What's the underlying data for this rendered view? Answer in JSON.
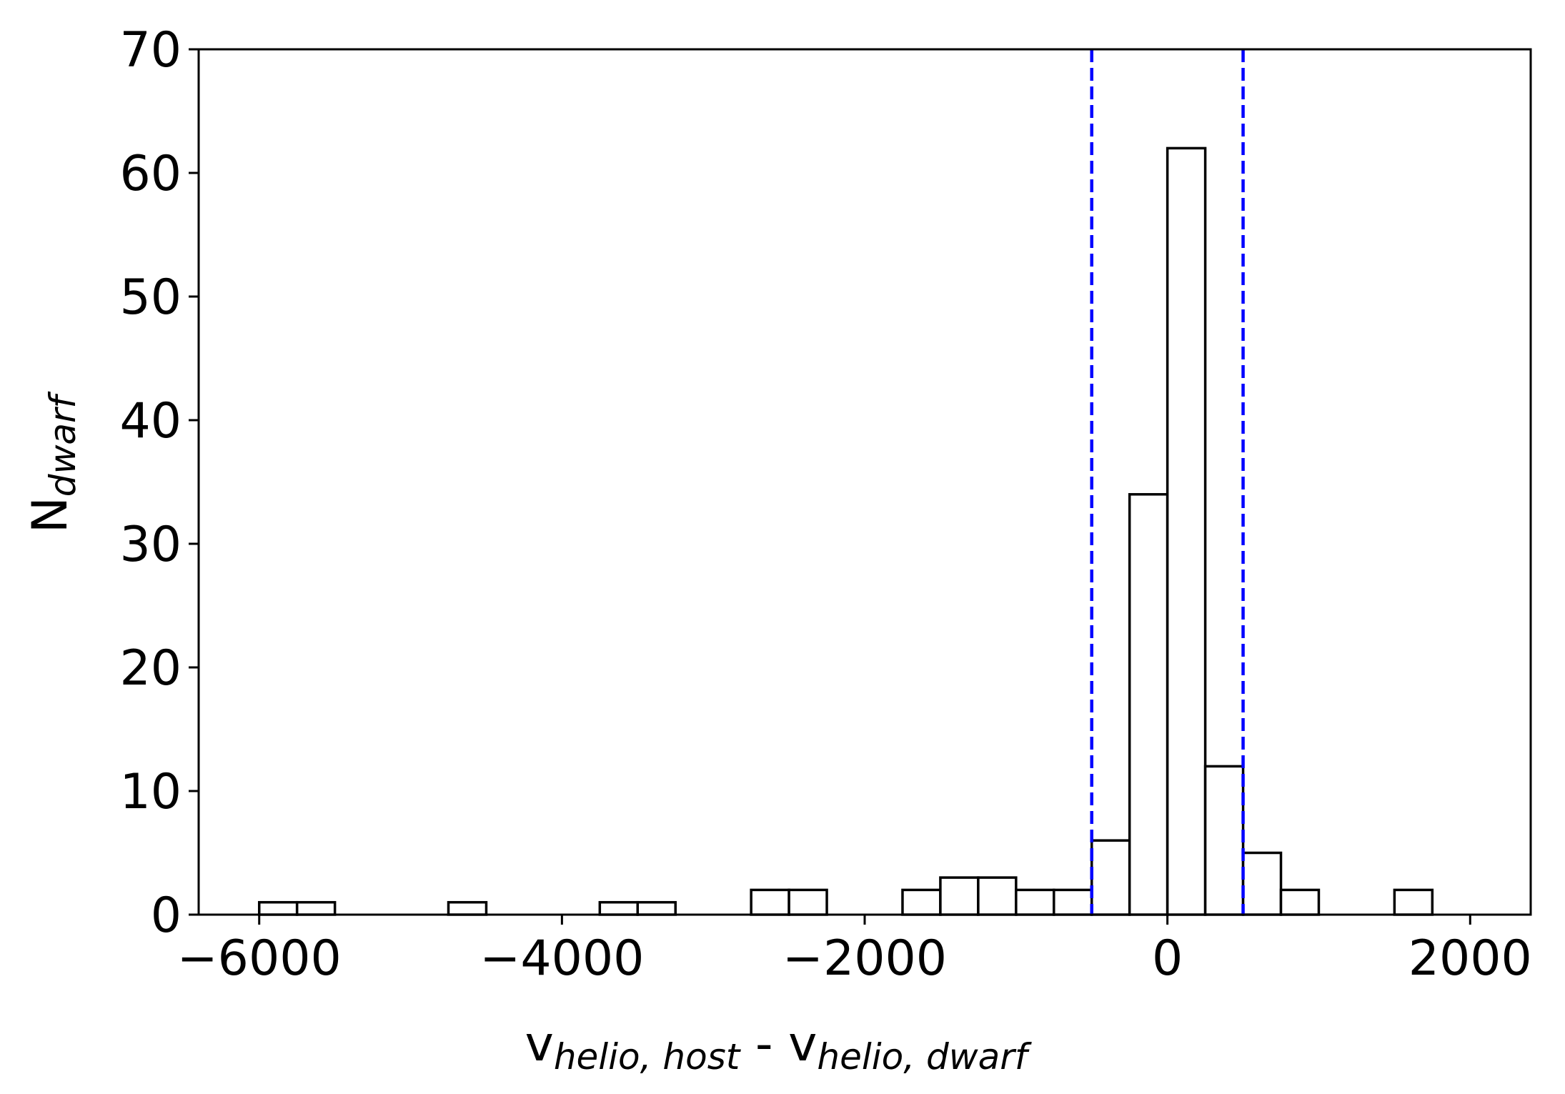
{
  "chart_data": {
    "type": "bar",
    "subtype": "histogram",
    "xlabel": {
      "main1": "v",
      "sub1": "helio, host",
      "sep": " - ",
      "main2": "v",
      "sub2": "helio, dwarf"
    },
    "ylabel": {
      "main": "N",
      "sub": "dwarf"
    },
    "xlim": [
      -6400,
      2400
    ],
    "ylim": [
      0,
      70
    ],
    "xticks": [
      -6000,
      -4000,
      -2000,
      0,
      2000
    ],
    "xtick_labels": [
      "−6000",
      "−4000",
      "−2000",
      "0",
      "2000"
    ],
    "yticks": [
      0,
      10,
      20,
      30,
      40,
      50,
      60,
      70
    ],
    "ytick_labels": [
      "0",
      "10",
      "20",
      "30",
      "40",
      "50",
      "60",
      "70"
    ],
    "bin_width": 250,
    "bins": [
      {
        "x0": -6000,
        "x1": -5750,
        "count": 1
      },
      {
        "x0": -5750,
        "x1": -5500,
        "count": 1
      },
      {
        "x0": -4750,
        "x1": -4500,
        "count": 1
      },
      {
        "x0": -3750,
        "x1": -3500,
        "count": 1
      },
      {
        "x0": -3500,
        "x1": -3250,
        "count": 1
      },
      {
        "x0": -2750,
        "x1": -2500,
        "count": 2
      },
      {
        "x0": -2500,
        "x1": -2250,
        "count": 2
      },
      {
        "x0": -1750,
        "x1": -1500,
        "count": 2
      },
      {
        "x0": -1500,
        "x1": -1250,
        "count": 3
      },
      {
        "x0": -1250,
        "x1": -1000,
        "count": 3
      },
      {
        "x0": -1000,
        "x1": -750,
        "count": 2
      },
      {
        "x0": -750,
        "x1": -500,
        "count": 2
      },
      {
        "x0": -500,
        "x1": -250,
        "count": 6
      },
      {
        "x0": -250,
        "x1": 0,
        "count": 34
      },
      {
        "x0": 0,
        "x1": 250,
        "count": 62
      },
      {
        "x0": 250,
        "x1": 500,
        "count": 12
      },
      {
        "x0": 500,
        "x1": 750,
        "count": 5
      },
      {
        "x0": 750,
        "x1": 1000,
        "count": 2
      },
      {
        "x0": 1500,
        "x1": 1750,
        "count": 2
      }
    ],
    "baseline_range": [
      -6000,
      2000
    ],
    "vlines": [
      -500,
      500
    ],
    "vline_color": "#0000ff",
    "bar_fill": "#ffffff",
    "bar_edge": "#000000",
    "grid": false
  }
}
